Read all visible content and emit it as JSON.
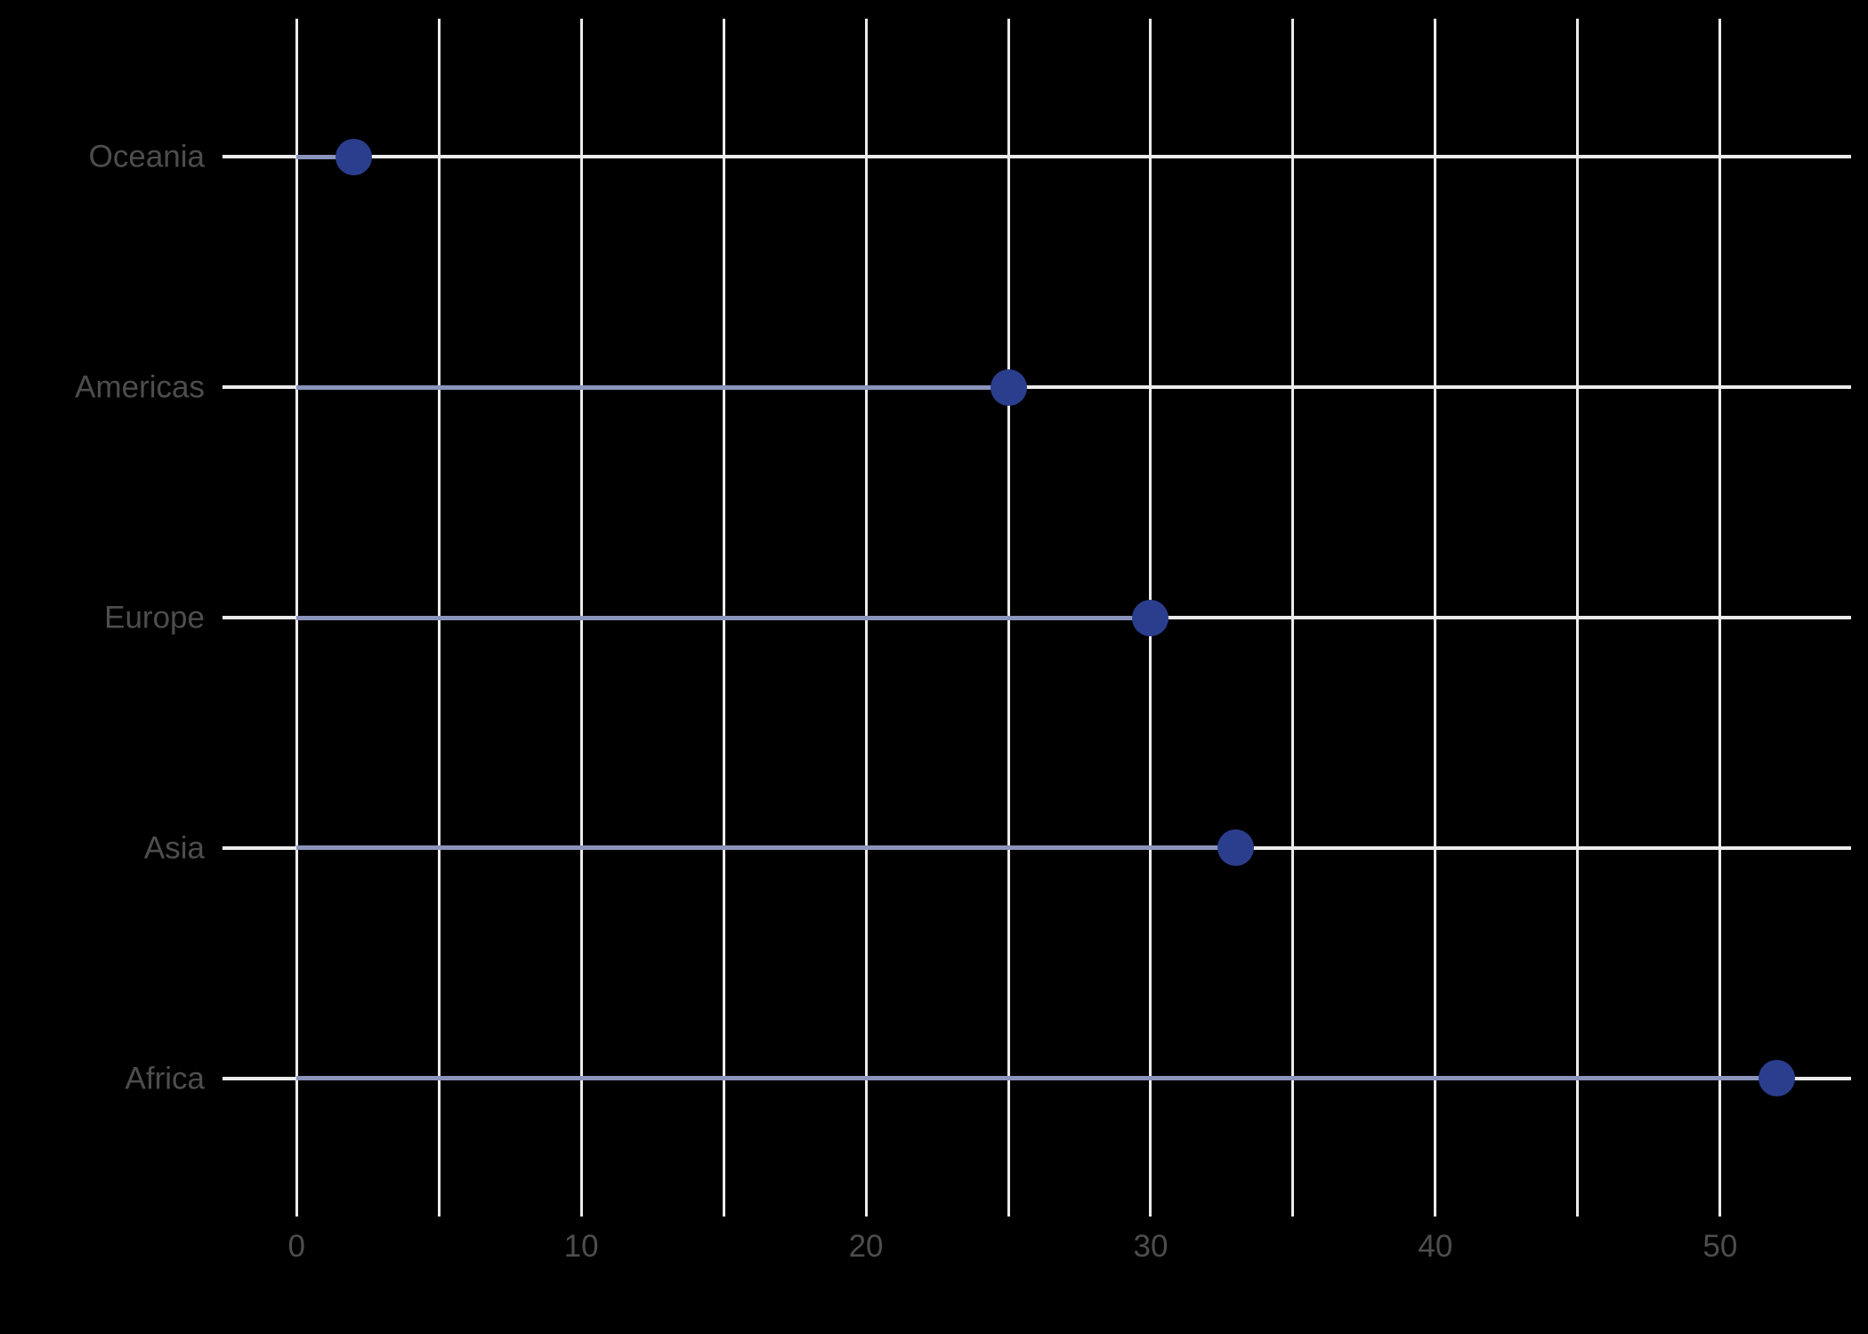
{
  "chart_data": {
    "type": "scatter",
    "variant": "lollipop-horizontal",
    "title": "",
    "xlabel": "",
    "ylabel": "",
    "categories": [
      "Oceania",
      "Americas",
      "Europe",
      "Asia",
      "Africa"
    ],
    "values": [
      2,
      25,
      30,
      33,
      52
    ],
    "xticks": [
      0,
      10,
      20,
      30,
      40,
      50
    ],
    "x_minor_step": 5,
    "xlim": [
      -2.6,
      54.6
    ],
    "grid": true,
    "legend": "none",
    "category_order": "top-to-bottom",
    "colors": {
      "dot": "#2b3e8e",
      "stem": "#8b94bb",
      "grid": "#ebebeb",
      "text": "#4d4d4d",
      "background": "#000000"
    }
  }
}
